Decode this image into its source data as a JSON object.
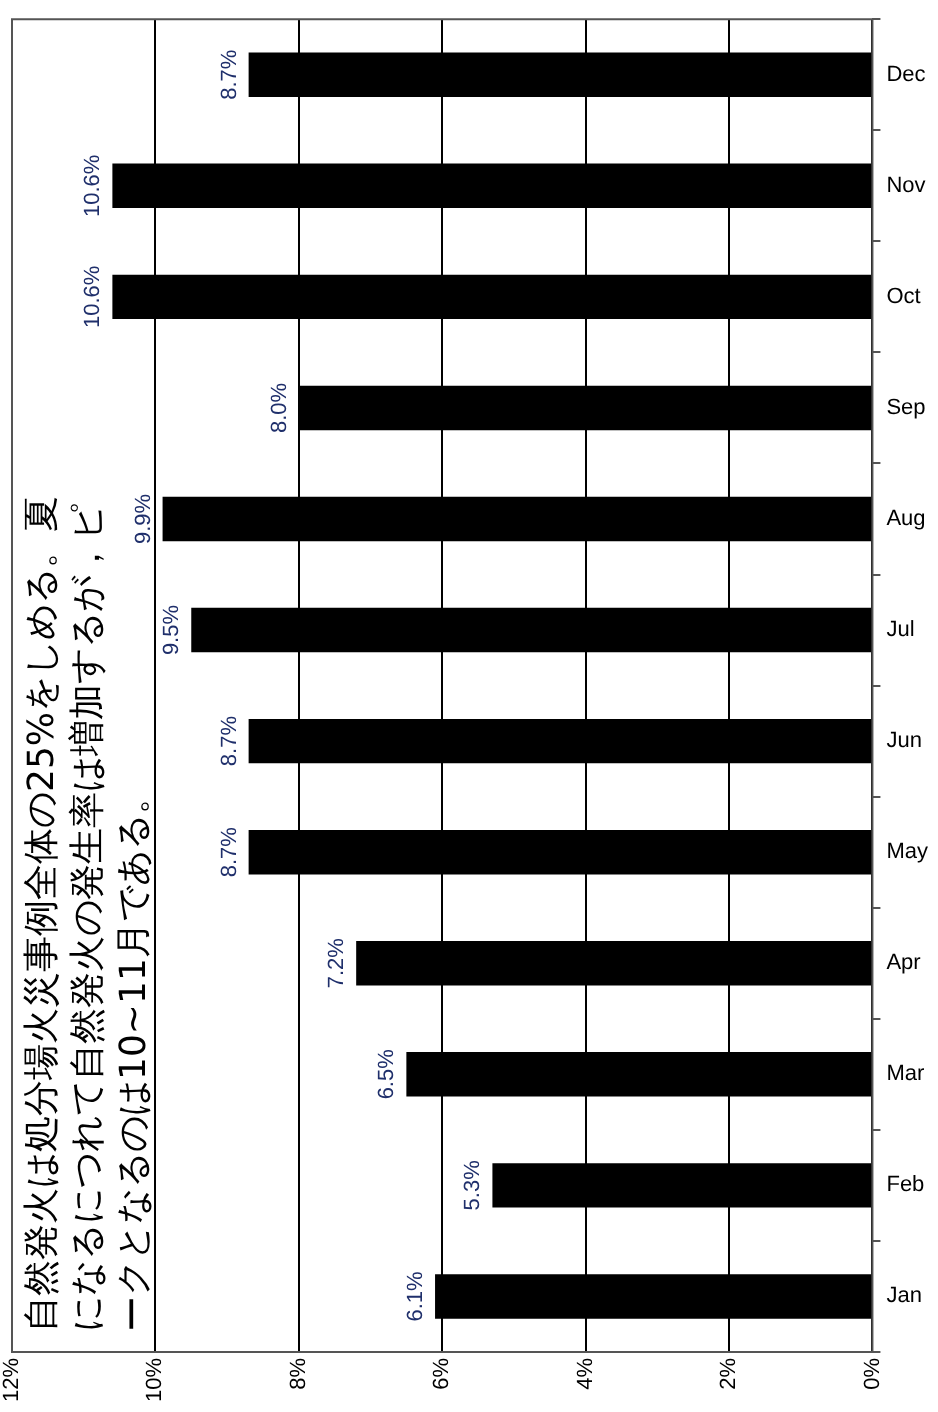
{
  "chart_data": {
    "type": "bar",
    "orientation": "horizontal",
    "categories": [
      "Dec",
      "Nov",
      "Oct",
      "Sep",
      "Aug",
      "Jul",
      "Jun",
      "May",
      "Apr",
      "Mar",
      "Feb",
      "Jan"
    ],
    "values": [
      8.7,
      10.6,
      10.6,
      8.0,
      9.9,
      9.5,
      8.7,
      8.7,
      7.2,
      6.5,
      5.3,
      6.1
    ],
    "value_labels": [
      "8.7%",
      "10.6%",
      "10.6%",
      "8.0%",
      "9.9%",
      "9.5%",
      "8.7%",
      "8.7%",
      "7.2%",
      "6.5%",
      "5.3%",
      "6.1%"
    ],
    "color": "#000000",
    "xlim": [
      12,
      0
    ],
    "xticks": [
      {
        "value": 12,
        "label": "12%"
      },
      {
        "value": 10,
        "label": "10%"
      },
      {
        "value": 8,
        "label": "8%"
      },
      {
        "value": 6,
        "label": "6%"
      },
      {
        "value": 4,
        "label": "4%"
      },
      {
        "value": 2,
        "label": "2%"
      },
      {
        "value": 0,
        "label": "0%"
      }
    ],
    "grid": "x",
    "annotations": [
      "自然発火は処分場火災事例全体の25%をしめる。夏になるにつれて自然発火の発生率は増加するが，ピークとなるのは10~11月である。"
    ]
  }
}
